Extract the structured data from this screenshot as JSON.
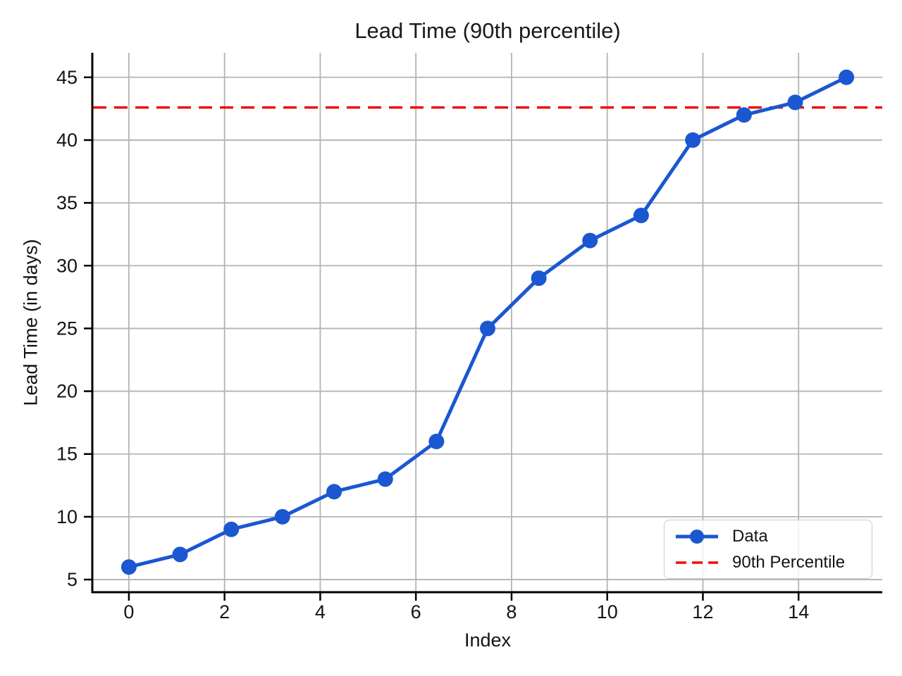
{
  "figure": {
    "title": "Lead Time (90th percentile)",
    "xlabel": "Index",
    "ylabel": "Lead Time (in days)"
  },
  "legend": {
    "position": "lower right",
    "items": [
      {
        "label": "Data"
      },
      {
        "label": "90th Percentile"
      }
    ]
  },
  "chart_data": {
    "type": "line",
    "title": "Lead Time (90th percentile)",
    "xlabel": "Index",
    "ylabel": "Lead Time (in days)",
    "series": [
      {
        "name": "Data",
        "x": [
          0,
          1.07,
          2.14,
          3.21,
          4.29,
          5.36,
          6.43,
          7.5,
          8.57,
          9.64,
          10.71,
          11.79,
          12.86,
          13.93,
          15
        ],
        "y": [
          6,
          7,
          9,
          10,
          12,
          13,
          16,
          25,
          29,
          32,
          34,
          40,
          42,
          43,
          45
        ],
        "color": "#1a57d1",
        "marker": "circle",
        "line_style": "solid"
      },
      {
        "name": "90th Percentile",
        "type": "hline",
        "y": 42.6,
        "color": "#ee0d0d",
        "line_style": "dashed"
      }
    ],
    "xlim": [
      -0.75,
      15.75
    ],
    "ylim": [
      4.05,
      46.95
    ],
    "x_ticks": [
      0,
      2,
      4,
      6,
      8,
      10,
      12,
      14
    ],
    "y_ticks": [
      5,
      10,
      15,
      20,
      25,
      30,
      35,
      40,
      45
    ],
    "grid": true,
    "legend_position": "lower right",
    "colors": {
      "data_line": "#1a57d1",
      "percentile_line": "#ee0d0d",
      "grid": "#b3b3b3",
      "spine": "#000000",
      "text": "#141414"
    }
  }
}
